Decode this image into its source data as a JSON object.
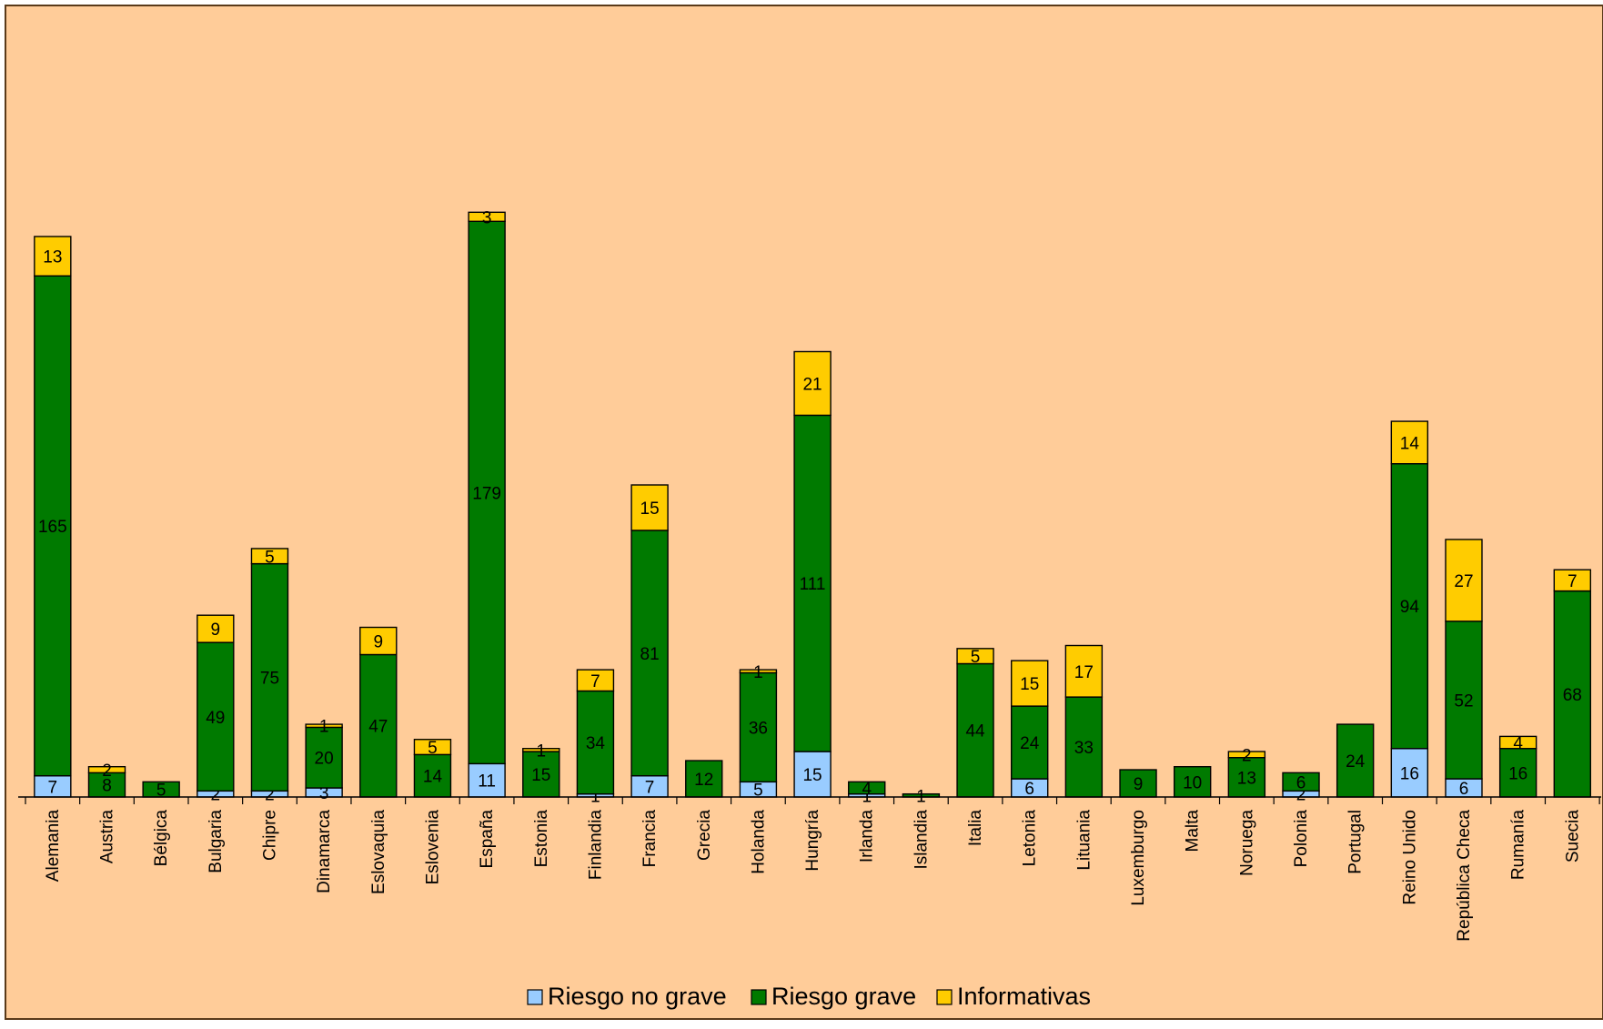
{
  "colors": {
    "background": "#FFCC99",
    "border": "#5A3A1A",
    "riesgo_no_grave": "#99CCFF",
    "riesgo_grave": "#007A00",
    "informativas": "#FFCC00"
  },
  "chart_data": {
    "type": "bar",
    "stacked": true,
    "title": "",
    "xlabel": "",
    "ylabel": "",
    "ylim": [
      0,
      220
    ],
    "grid": false,
    "legend_position": "bottom",
    "categories": [
      "Alemania",
      "Austria",
      "Bélgica",
      "Bulgaria",
      "Chipre",
      "Dinamarca",
      "Eslovaquia",
      "Eslovenia",
      "España",
      "Estonia",
      "Finlandia",
      "Francia",
      "Grecia",
      "Holanda",
      "Hungría",
      "Irlanda",
      "Islandia",
      "Italia",
      "Letonia",
      "Lituania",
      "Luxemburgo",
      "Malta",
      "Noruega",
      "Polonia",
      "Portugal",
      "Reino Unido",
      "República Checa",
      "Rumanía",
      "Suecia"
    ],
    "series": [
      {
        "name": "Riesgo no grave",
        "color_key": "riesgo_no_grave",
        "values": [
          7,
          0,
          0,
          2,
          2,
          3,
          0,
          0,
          11,
          0,
          1,
          7,
          0,
          5,
          15,
          1,
          0,
          0,
          6,
          0,
          0,
          0,
          0,
          2,
          0,
          16,
          6,
          0,
          0
        ]
      },
      {
        "name": "Riesgo grave",
        "color_key": "riesgo_grave",
        "values": [
          165,
          8,
          5,
          49,
          75,
          20,
          47,
          14,
          179,
          15,
          34,
          81,
          12,
          36,
          111,
          4,
          1,
          44,
          24,
          33,
          9,
          10,
          13,
          6,
          24,
          94,
          52,
          16,
          68
        ]
      },
      {
        "name": "Informativas",
        "color_key": "informativas",
        "values": [
          13,
          2,
          0,
          9,
          5,
          1,
          9,
          5,
          3,
          1,
          7,
          15,
          0,
          1,
          21,
          0,
          0,
          5,
          15,
          17,
          0,
          0,
          2,
          0,
          0,
          14,
          27,
          4,
          7
        ]
      }
    ]
  }
}
